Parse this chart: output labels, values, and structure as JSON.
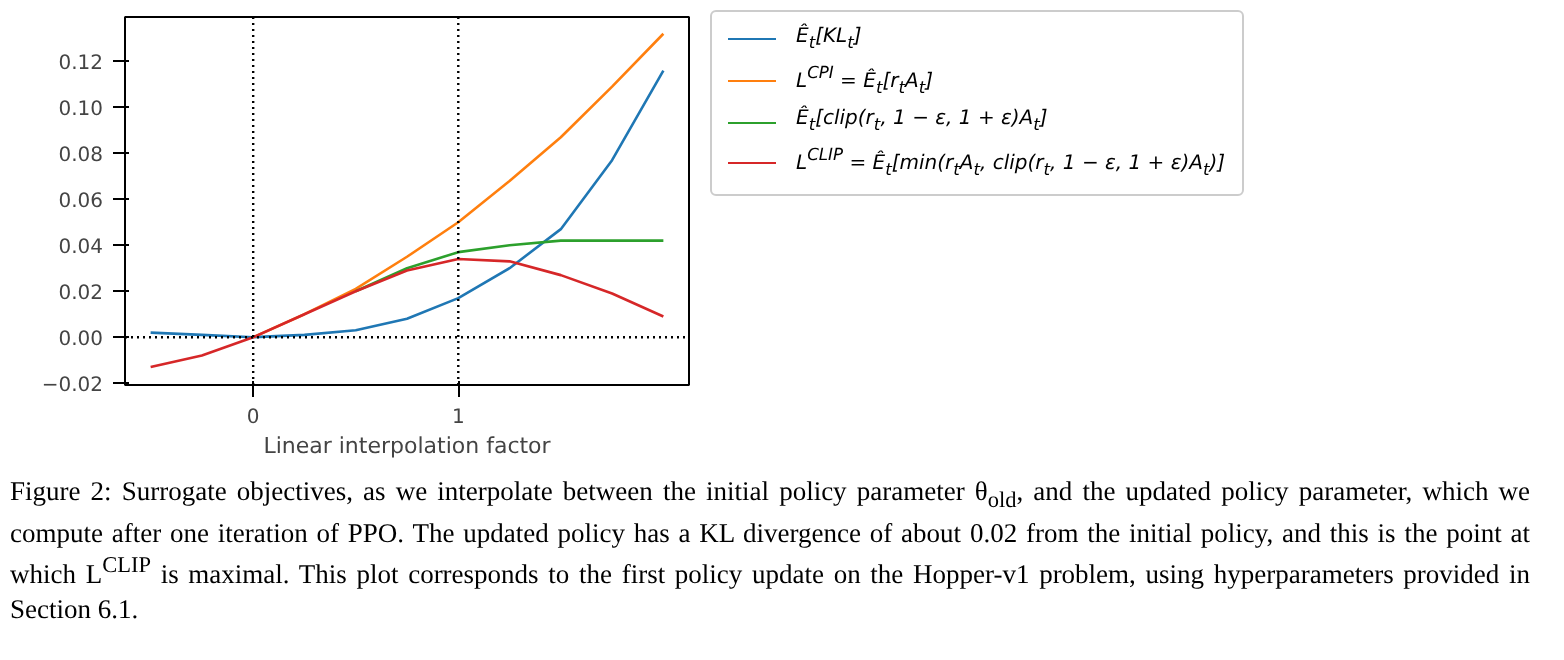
{
  "chart_data": {
    "type": "line",
    "xlabel": "Linear interpolation factor",
    "x": [
      -0.5,
      -0.25,
      0,
      0.25,
      0.5,
      0.75,
      1,
      1.25,
      1.5,
      1.75,
      2
    ],
    "series": [
      {
        "name": "Ê$_{t}$[KL$_{t}$]",
        "color": "#1f77b4",
        "values": [
          0.002,
          0.001,
          0,
          0.001,
          0.003,
          0.008,
          0.017,
          0.03,
          0.047,
          0.077,
          0.116
        ]
      },
      {
        "name": "L$^{CPI}$ = Ê$_{t}$[r$_{t}$A$_{t}$]",
        "color": "#ff7f0e",
        "values": [
          null,
          null,
          0,
          0.01,
          0.021,
          0.035,
          0.05,
          0.068,
          0.087,
          0.109,
          0.132
        ]
      },
      {
        "name": "Ê$_{t}$[clip(r$_{t}$, 1 − ε, 1 + ε)A$_{t}$]",
        "color": "#2ca02c",
        "values": [
          null,
          null,
          null,
          null,
          0.02,
          0.03,
          0.037,
          0.04,
          0.042,
          0.042,
          0.042
        ]
      },
      {
        "name": "L$^{CLIP}$ = Ê$_{t}$[min(r$_{t}$A$_{t}$, clip(r$_{t}$, 1 − ε, 1 + ε)A$_{t}$)]",
        "color": "#d62728",
        "values": [
          -0.013,
          -0.008,
          0,
          0.01,
          0.02,
          0.029,
          0.034,
          0.033,
          0.027,
          0.019,
          0.009
        ]
      }
    ],
    "xlim": [
      -0.625,
      2.125
    ],
    "ylim": [
      -0.0208,
      0.1393
    ],
    "xticks": [
      0,
      1
    ],
    "yticks": [
      {
        "value": -0.02,
        "label": "−0.02"
      },
      {
        "value": 0,
        "label": "0.00"
      },
      {
        "value": 0.02,
        "label": "0.02"
      },
      {
        "value": 0.04,
        "label": "0.04"
      },
      {
        "value": 0.06,
        "label": "0.06"
      },
      {
        "value": 0.08,
        "label": "0.08"
      },
      {
        "value": 0.1,
        "label": "0.10"
      },
      {
        "value": 0.12,
        "label": "0.12"
      }
    ],
    "ref_lines": [
      {
        "axis": "x",
        "value": 0,
        "color": "#000000",
        "line_style": "dotted"
      },
      {
        "axis": "x",
        "value": 1,
        "color": "#000000",
        "line_style": "dotted"
      },
      {
        "axis": "y",
        "value": 0,
        "color": "#000000",
        "line_style": "dotted"
      }
    ],
    "grid": false,
    "legend": "right",
    "annotations": [
      "Figure 2: Surrogate objectives, as we interpolate between the initial policy parameter θ$_{old}$, and the updated policy parameter, which we compute after one iteration of PPO. The updated policy has a KL divergence of about 0.02 from the initial policy, and this is the point at which L$^{CLIP}$ is maximal. This plot corresponds to the first policy update on the Hopper-v1 problem, using hyperparameters provided in Section 6.1."
    ]
  }
}
